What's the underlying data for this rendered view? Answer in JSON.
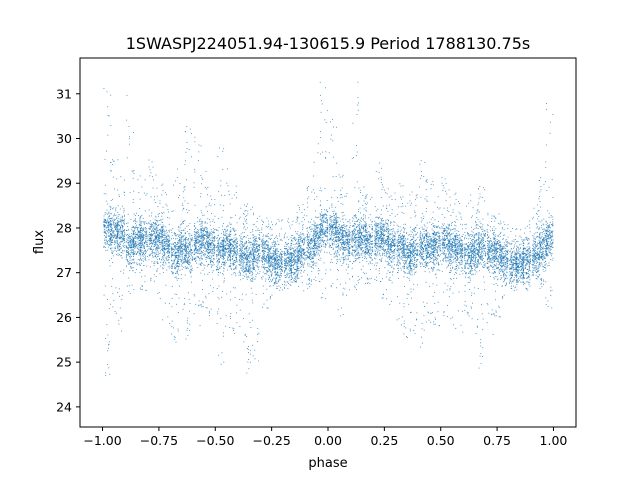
{
  "chart_data": {
    "type": "scatter",
    "title": "1SWASPJ224051.94-130615.9 Period 1788130.75s",
    "xlabel": "phase",
    "ylabel": "flux",
    "xlim": [
      -1.1,
      1.1
    ],
    "ylim": [
      23.55,
      31.8
    ],
    "xticks": [
      -1.0,
      -0.75,
      -0.5,
      -0.25,
      0.0,
      0.25,
      0.5,
      0.75,
      1.0
    ],
    "xtick_labels": [
      "−1.00",
      "−0.75",
      "−0.50",
      "−0.25",
      "0.00",
      "0.25",
      "0.50",
      "0.75",
      "1.00"
    ],
    "yticks": [
      24,
      25,
      26,
      27,
      28,
      29,
      30,
      31
    ],
    "ytick_labels": [
      "24",
      "25",
      "26",
      "27",
      "28",
      "29",
      "30",
      "31"
    ],
    "grid": false,
    "marker_color": "#1f77b4",
    "series": [
      {
        "phase": [
          -0.98,
          -0.95,
          -0.92,
          -0.88,
          -0.85,
          -0.82,
          -0.78,
          -0.75,
          -0.72,
          -0.68,
          -0.65,
          -0.62,
          -0.58,
          -0.55,
          -0.52,
          -0.48,
          -0.45,
          -0.42,
          -0.38,
          -0.35,
          -0.32,
          -0.28,
          -0.25,
          -0.22,
          -0.18,
          -0.15,
          -0.12,
          -0.08,
          -0.05,
          -0.02,
          0.02,
          0.05,
          0.08,
          0.12,
          0.15,
          0.18,
          0.22,
          0.25,
          0.28,
          0.32,
          0.35,
          0.38,
          0.42,
          0.45,
          0.48,
          0.52,
          0.55,
          0.58,
          0.62,
          0.65,
          0.68,
          0.72,
          0.75,
          0.78,
          0.82,
          0.85,
          0.88,
          0.92,
          0.95,
          0.98
        ],
        "flux_center": [
          28.0,
          27.9,
          27.9,
          27.6,
          27.8,
          27.7,
          27.8,
          27.8,
          27.6,
          27.4,
          27.6,
          27.5,
          27.7,
          27.7,
          27.6,
          27.5,
          27.6,
          27.5,
          27.4,
          27.3,
          27.5,
          27.4,
          27.3,
          27.2,
          27.3,
          27.3,
          27.5,
          27.6,
          27.8,
          28.0,
          28.0,
          27.8,
          27.7,
          27.8,
          27.8,
          27.7,
          27.8,
          27.8,
          27.6,
          27.6,
          27.4,
          27.5,
          27.6,
          27.6,
          27.6,
          27.7,
          27.6,
          27.5,
          27.4,
          27.5,
          27.6,
          27.5,
          27.4,
          27.3,
          27.2,
          27.2,
          27.3,
          27.4,
          27.6,
          27.8
        ],
        "flux_min": [
          24.6,
          26.0,
          25.6,
          26.4,
          27.0,
          26.6,
          26.8,
          26.4,
          25.8,
          25.4,
          26.0,
          25.4,
          25.8,
          26.2,
          26.0,
          24.9,
          25.4,
          25.6,
          25.2,
          24.6,
          25.0,
          26.2,
          26.4,
          26.6,
          26.6,
          26.8,
          26.4,
          26.6,
          26.8,
          26.4,
          26.6,
          26.0,
          26.4,
          26.6,
          26.8,
          26.6,
          26.8,
          26.4,
          26.2,
          25.8,
          25.4,
          25.6,
          25.2,
          25.6,
          25.8,
          26.0,
          25.8,
          25.6,
          26.0,
          25.4,
          24.7,
          25.6,
          26.0,
          26.4,
          26.6,
          26.8,
          26.6,
          26.8,
          26.6,
          26.2
        ],
        "flux_max": [
          31.4,
          29.6,
          29.2,
          31.4,
          29.4,
          29.2,
          29.6,
          29.0,
          28.8,
          29.4,
          29.2,
          30.4,
          30.2,
          29.4,
          28.8,
          29.8,
          29.4,
          29.0,
          28.6,
          28.6,
          28.4,
          28.3,
          28.2,
          28.2,
          28.4,
          28.4,
          28.6,
          29.0,
          30.4,
          31.4,
          30.6,
          29.2,
          29.0,
          31.4,
          29.0,
          28.8,
          29.6,
          29.2,
          28.8,
          29.0,
          28.8,
          29.0,
          29.6,
          29.2,
          28.8,
          29.2,
          28.8,
          28.6,
          28.8,
          28.6,
          29.0,
          28.4,
          28.4,
          28.2,
          28.0,
          28.0,
          28.2,
          28.6,
          29.2,
          31.0
        ]
      }
    ]
  }
}
